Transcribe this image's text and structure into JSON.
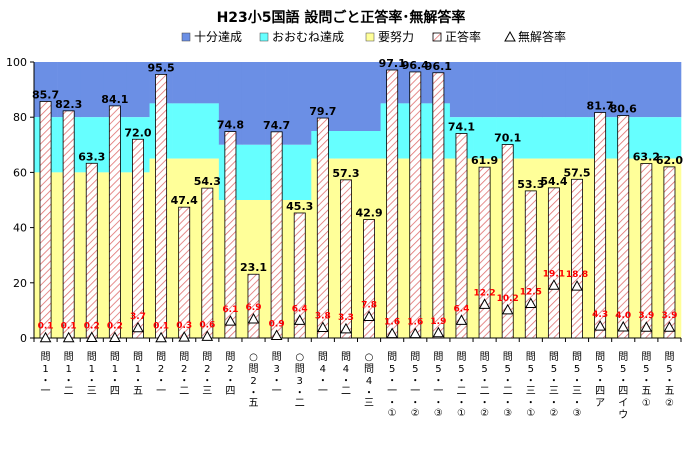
{
  "chart_data": {
    "type": "bar",
    "title": "H23小5国語 設問ごと正答率･無解答率",
    "legend": [
      "十分達成",
      "おおむね達成",
      "要努力",
      "正答率",
      "無解答率"
    ],
    "ylim": [
      0,
      100
    ],
    "yticks": [
      "0",
      "20",
      "40",
      "60",
      "80",
      "100"
    ],
    "categories": [
      "問1一",
      "問1二",
      "問1三",
      "問1四",
      "問1五",
      "問2一",
      "問2二",
      "問2三",
      "問2四",
      "○問2五",
      "問3一",
      "○問3二",
      "問4一",
      "問4二",
      "○問4三",
      "問5一①",
      "問5一②",
      "問5一③",
      "問5二①",
      "問5二②",
      "問5二③",
      "問5三①",
      "問5三②",
      "問5三③",
      "問5四ア",
      "問5四イウ",
      "問5五①",
      "問5五②"
    ],
    "category_labels": [
      [
        "問",
        "1",
        "・",
        "一"
      ],
      [
        "問",
        "1",
        "・",
        "二"
      ],
      [
        "問",
        "1",
        "・",
        "三"
      ],
      [
        "問",
        "1",
        "・",
        "四"
      ],
      [
        "問",
        "1",
        "・",
        "五"
      ],
      [
        "問",
        "2",
        "・",
        "一"
      ],
      [
        "問",
        "2",
        "・",
        "二"
      ],
      [
        "問",
        "2",
        "・",
        "三"
      ],
      [
        "問",
        "2",
        "・",
        "四"
      ],
      [
        "○",
        "問",
        "2",
        "・",
        "五"
      ],
      [
        "問",
        "3",
        "・",
        "一"
      ],
      [
        "○",
        "問",
        "3",
        "・",
        "二"
      ],
      [
        "問",
        "4",
        "・",
        "一"
      ],
      [
        "問",
        "4",
        "・",
        "二"
      ],
      [
        "○",
        "問",
        "4",
        "・",
        "三"
      ],
      [
        "問",
        "5",
        "・",
        "一",
        "・",
        "①"
      ],
      [
        "問",
        "5",
        "・",
        "一",
        "・",
        "②"
      ],
      [
        "問",
        "5",
        "・",
        "一",
        "・",
        "③"
      ],
      [
        "問",
        "5",
        "・",
        "二",
        "・",
        "①"
      ],
      [
        "問",
        "5",
        "・",
        "二",
        "・",
        "②"
      ],
      [
        "問",
        "5",
        "・",
        "二",
        "・",
        "③"
      ],
      [
        "問",
        "5",
        "・",
        "三",
        "・",
        "①"
      ],
      [
        "問",
        "5",
        "・",
        "三",
        "・",
        "②"
      ],
      [
        "問",
        "5",
        "・",
        "三",
        "・",
        "③"
      ],
      [
        "問",
        "5",
        "・",
        "四",
        "ア"
      ],
      [
        "問",
        "5",
        "・",
        "四",
        "イ",
        "ウ"
      ],
      [
        "問",
        "5",
        "・",
        "五",
        "①"
      ],
      [
        "問",
        "5",
        "・",
        "五",
        "②"
      ]
    ],
    "band_thresholds": [
      [
        60,
        80
      ],
      [
        60,
        80
      ],
      [
        60,
        80
      ],
      [
        60,
        80
      ],
      [
        60,
        80
      ],
      [
        65,
        85
      ],
      [
        65,
        85
      ],
      [
        65,
        85
      ],
      [
        50,
        70
      ],
      [
        50,
        70
      ],
      [
        50,
        70
      ],
      [
        50,
        70
      ],
      [
        65,
        75
      ],
      [
        65,
        75
      ],
      [
        65,
        75
      ],
      [
        65,
        85
      ],
      [
        65,
        85
      ],
      [
        65,
        85
      ],
      [
        65,
        80
      ],
      [
        65,
        80
      ],
      [
        65,
        80
      ],
      [
        65,
        80
      ],
      [
        65,
        80
      ],
      [
        65,
        80
      ],
      [
        65,
        80
      ],
      [
        65,
        80
      ],
      [
        65,
        80
      ],
      [
        65,
        80
      ]
    ],
    "series": [
      {
        "name": "正答率",
        "values": [
          85.7,
          82.3,
          63.3,
          84.1,
          72.0,
          95.5,
          47.4,
          54.3,
          74.8,
          23.1,
          74.7,
          45.3,
          79.7,
          57.3,
          42.9,
          97.1,
          96.4,
          96.1,
          74.1,
          61.9,
          70.1,
          53.3,
          54.4,
          57.5,
          81.7,
          80.6,
          63.2,
          62.0
        ],
        "labels": [
          "85.7",
          "82.3",
          "63.3",
          "84.1",
          "72.0",
          "95.5",
          "47.4",
          "54.3",
          "74.8",
          "23.1",
          "74.7",
          "45.3",
          "79.7",
          "57.3",
          "42.9",
          "97.1",
          "96.4",
          "96.1",
          "74.1",
          "61.9",
          "70.1",
          "53.3",
          "54.4",
          "57.5",
          "81.7",
          "80.6",
          "63.2",
          "62.0"
        ]
      },
      {
        "name": "無解答率",
        "values": [
          0.1,
          0.1,
          0.2,
          0.2,
          3.7,
          0.1,
          0.3,
          0.6,
          6.1,
          6.9,
          0.9,
          6.4,
          3.8,
          3.3,
          7.8,
          1.6,
          1.6,
          1.9,
          6.4,
          12.2,
          10.2,
          12.5,
          19.1,
          18.8,
          4.3,
          4.0,
          3.9,
          3.9
        ],
        "labels": [
          "0.1",
          "0.1",
          "0.2",
          "0.2",
          "3.7",
          "0.1",
          "0.3",
          "0.6",
          "6.1",
          "6.9",
          "0.9",
          "6.4",
          "3.8",
          "3.3",
          "7.8",
          "1.6",
          "1.6",
          "1.9",
          "6.4",
          "12.2",
          "10.2",
          "12.5",
          "19.1",
          "18.8",
          "4.3",
          "4.0",
          "3.9",
          "3.9"
        ]
      }
    ],
    "grid": false,
    "legend_position": "top",
    "colors": {
      "full": "#6b8fe5",
      "mostly": "#66ffff",
      "effort": "#ffff99",
      "correct_fill": "#ffffff",
      "correct_hatch": "#e07070",
      "correct_border": "#000000",
      "no_answer_marker": "#000000",
      "no_answer_label": "#ff0000"
    }
  }
}
